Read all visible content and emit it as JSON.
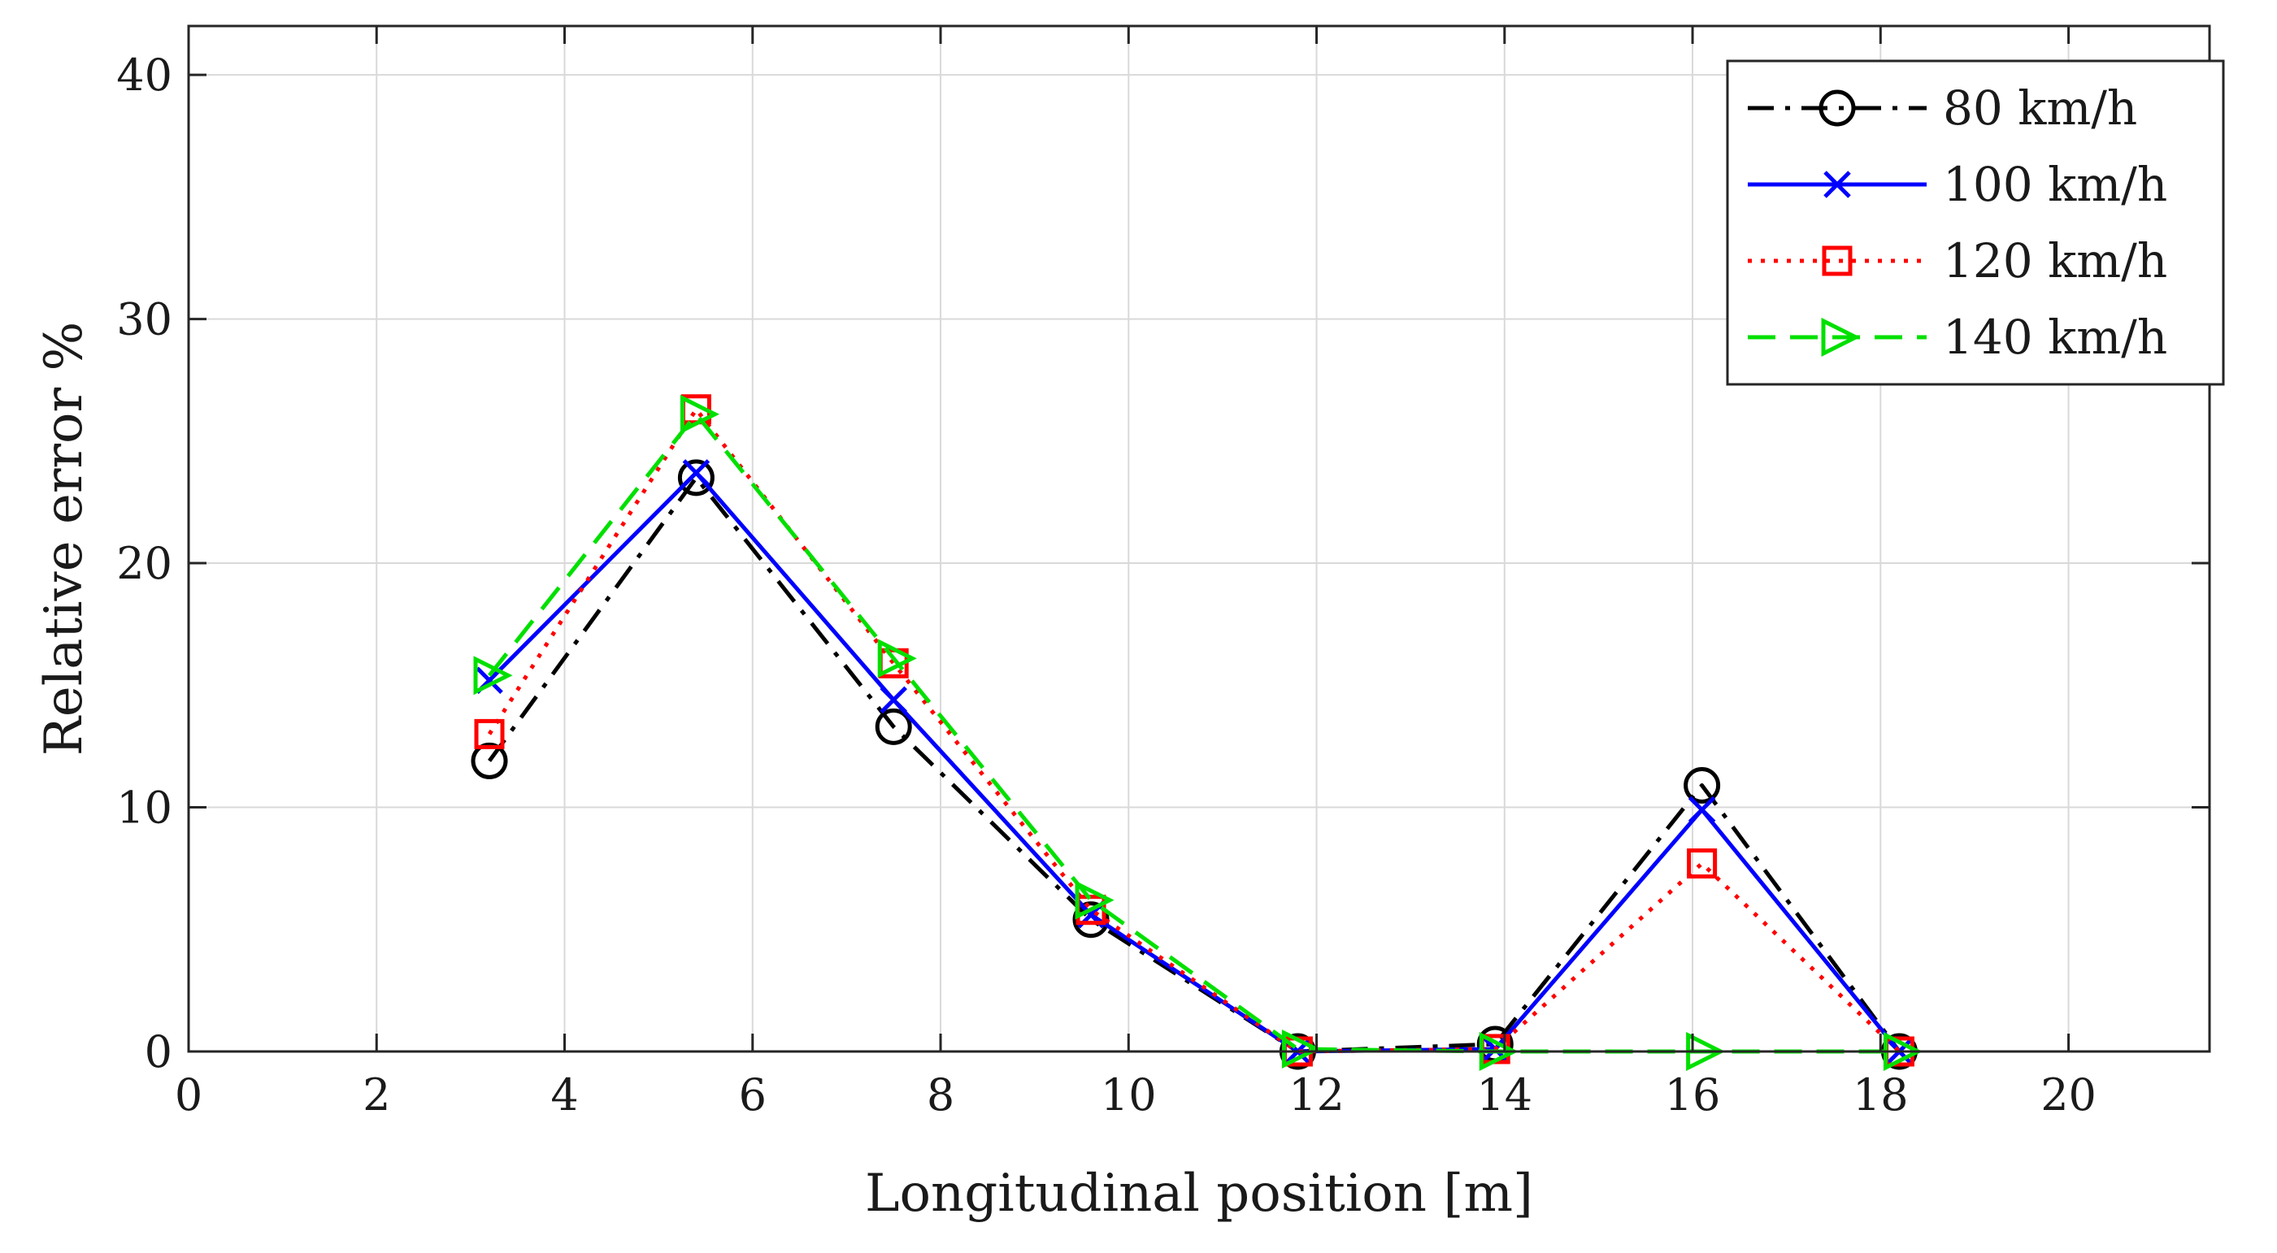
{
  "chart_data": {
    "type": "line",
    "title": "",
    "xlabel": "Longitudinal position [m]",
    "ylabel": "Relative error %",
    "xlim": [
      0,
      21.5
    ],
    "ylim": [
      0,
      42
    ],
    "xticks": [
      0,
      2,
      4,
      6,
      8,
      10,
      12,
      14,
      16,
      18,
      20
    ],
    "yticks": [
      0,
      10,
      20,
      30,
      40
    ],
    "grid": true,
    "legend_position": "top-right",
    "x": [
      3.2,
      5.4,
      7.5,
      9.6,
      11.8,
      13.9,
      16.1,
      18.2
    ],
    "series": [
      {
        "name": "80 km/h",
        "color": "#000000",
        "line_style": "dash-dot",
        "marker": "circle",
        "values": [
          11.9,
          23.5,
          13.3,
          5.4,
          0.0,
          0.3,
          10.9,
          0.0
        ]
      },
      {
        "name": "100 km/h",
        "color": "#0000ff",
        "line_style": "solid",
        "marker": "cross",
        "values": [
          15.2,
          23.7,
          14.4,
          5.6,
          0.0,
          0.1,
          9.9,
          0.0
        ]
      },
      {
        "name": "120 km/h",
        "color": "#ff0000",
        "line_style": "dotted",
        "marker": "square",
        "values": [
          13.0,
          26.3,
          15.9,
          5.8,
          0.0,
          0.1,
          7.7,
          0.0
        ]
      },
      {
        "name": "140 km/h",
        "color": "#00e000",
        "line_style": "dashed",
        "marker": "triangle-right",
        "values": [
          15.4,
          26.1,
          16.1,
          6.2,
          0.1,
          0.0,
          0.0,
          0.0
        ]
      }
    ]
  }
}
